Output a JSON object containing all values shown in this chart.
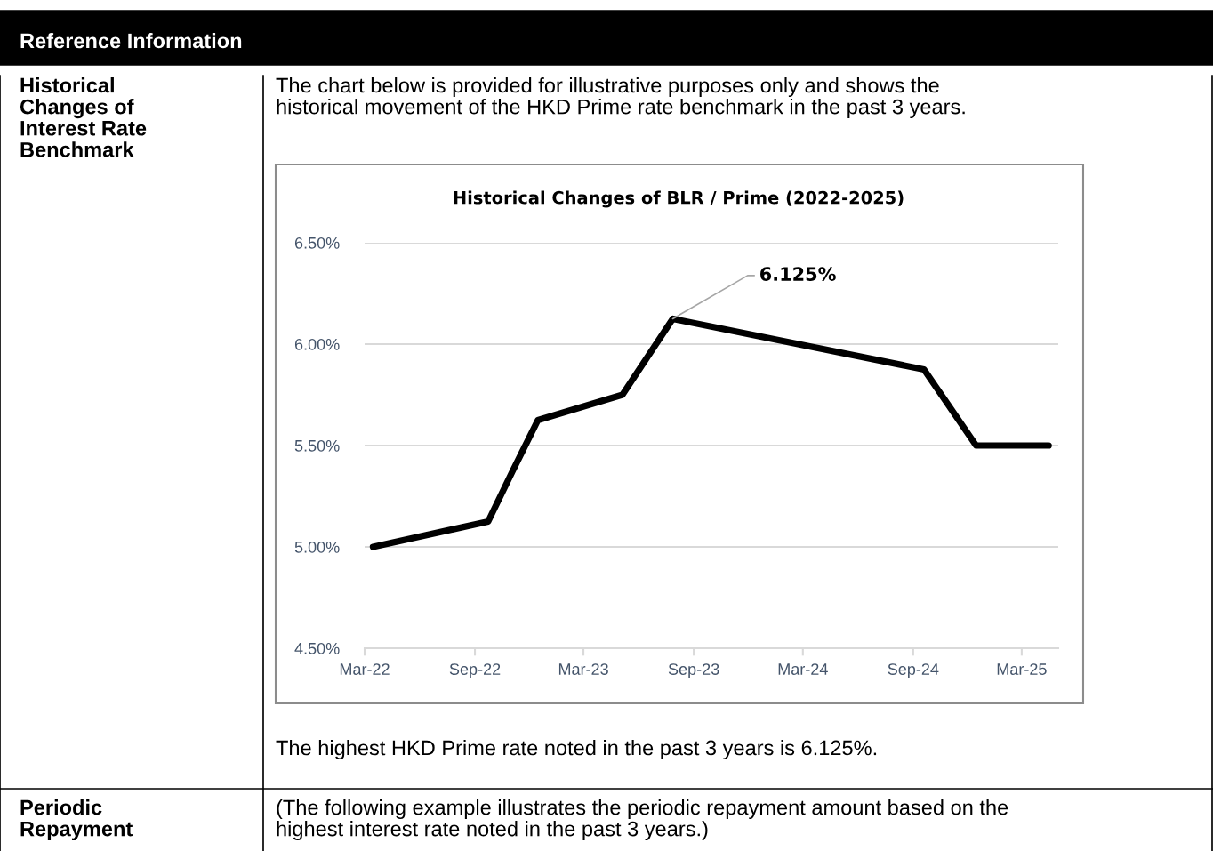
{
  "chart_data": {
    "type": "line",
    "title": "Historical Changes of BLR / Prime (2022-2025)",
    "x": [
      "2022-03-15",
      "2022-09-23",
      "2022-11-03",
      "2022-12-15",
      "2023-05-05",
      "2023-07-28",
      "2024-09-19",
      "2024-12-15",
      "2025-04-15"
    ],
    "series": [
      {
        "color": "#000000",
        "values": [
          5.0,
          5.125,
          5.375,
          5.625,
          5.75,
          6.125,
          5.875,
          5.5,
          5.5
        ]
      }
    ],
    "xlim": [
      "2022-03-01",
      "2025-05-01"
    ],
    "xticks": [
      {
        "value": "2022-03-01",
        "label": "Mar-22"
      },
      {
        "value": "2022-09-01",
        "label": "Sep-22"
      },
      {
        "value": "2023-03-01",
        "label": "Mar-23"
      },
      {
        "value": "2023-09-01",
        "label": "Sep-23"
      },
      {
        "value": "2024-03-01",
        "label": "Mar-24"
      },
      {
        "value": "2024-09-01",
        "label": "Sep-24"
      },
      {
        "value": "2025-03-01",
        "label": "Mar-25"
      }
    ],
    "ylim": [
      4.5,
      6.5
    ],
    "yticks": [
      {
        "value": 4.5,
        "label": "4.50%"
      },
      {
        "value": 5.0,
        "label": "5.00%"
      },
      {
        "value": 5.5,
        "label": "5.50%"
      },
      {
        "value": 6.0,
        "label": "6.00%"
      },
      {
        "value": 6.5,
        "label": "6.50%"
      }
    ],
    "grid": "y",
    "legend": false,
    "line_style": "solid",
    "marker": "none",
    "annotations": [
      "Reference Information",
      "Historical\nChanges of\nInterest Rate\nBenchmark",
      "The chart below is provided for illustrative purposes only and shows the\nhistorical movement of the HKD Prime rate benchmark in the past 3 years.",
      "The highest HKD Prime rate noted in the past 3 years is 6.125%.",
      "Periodic\nRepayment",
      "(The following example illustrates the periodic repayment amount based on the\nhighest interest rate noted in the past 3 years.)",
      {
        "text": "6.125%",
        "x": "2023-07-28",
        "y": 6.125
      }
    ]
  }
}
